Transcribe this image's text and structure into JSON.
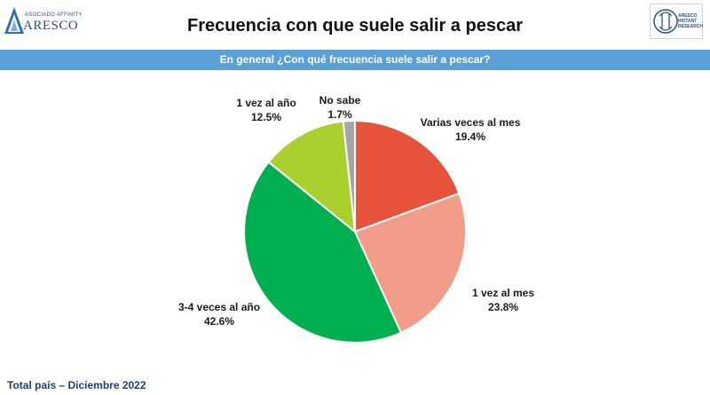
{
  "header": {
    "logo_left_tag": "ASOCIADO AFFINITY",
    "logo_left_brand": "ARESCO",
    "logo_right_text": [
      "ARESCO",
      "INSTANT",
      "RESEARCH"
    ],
    "title": "Frecuencia con que suele salir a pescar",
    "question": "En general ¿Con qué frecuencia suele salir a pescar?"
  },
  "chart_data": {
    "type": "pie",
    "title": "",
    "start_angle_deg": 0,
    "direction": "clockwise",
    "slices": [
      {
        "label": "Varias veces al mes",
        "value": 19.4,
        "value_label": "19.4%",
        "color": "#e8533b"
      },
      {
        "label": "1 vez al mes",
        "value": 23.8,
        "value_label": "23.8%",
        "color": "#f29c8a"
      },
      {
        "label": "3-4 veces al año",
        "value": 42.6,
        "value_label": "42.6%",
        "color": "#00b050"
      },
      {
        "label": "1 vez al año",
        "value": 12.5,
        "value_label": "12.5%",
        "color": "#a8d130"
      },
      {
        "label": "No sabe",
        "value": 1.7,
        "value_label": "1.7%",
        "color": "#a6a6a6"
      }
    ]
  },
  "footer": {
    "text": "Total país – Diciembre 2022"
  }
}
